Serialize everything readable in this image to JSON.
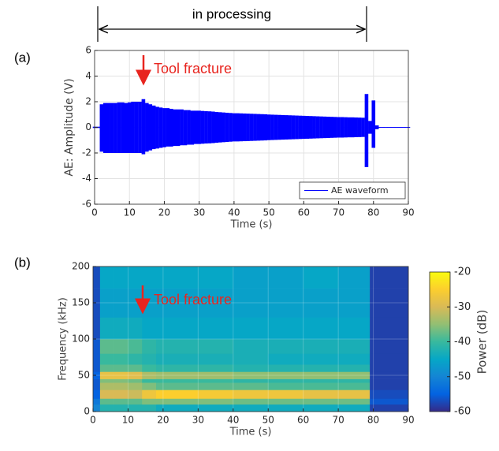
{
  "chart_data": [
    {
      "type": "range",
      "panel": "(a)",
      "span_label": "in processing",
      "annotation": "Tool fracture",
      "x_label": "Time (s)",
      "y_label": "AE: Amplitude (V)",
      "x": [
        0,
        1,
        2,
        3,
        4,
        5,
        6,
        7,
        8,
        9,
        10,
        11,
        12,
        13,
        14,
        15,
        16,
        17,
        18,
        19,
        20,
        21,
        22,
        23,
        24,
        25,
        26,
        27,
        28,
        29,
        30,
        31,
        32,
        33,
        34,
        35,
        36,
        37,
        38,
        39,
        40,
        41,
        42,
        43,
        44,
        45,
        46,
        47,
        48,
        49,
        50,
        51,
        52,
        53,
        54,
        55,
        56,
        57,
        58,
        59,
        60,
        61,
        62,
        63,
        64,
        65,
        66,
        67,
        68,
        69,
        70,
        71,
        72,
        73,
        74,
        75,
        76,
        77,
        78,
        79,
        80,
        81,
        82,
        83,
        84,
        85,
        86,
        87,
        88,
        89,
        90
      ],
      "series": [
        {
          "name": "AE waveform",
          "color": "#0000ff",
          "upper": [
            0.05,
            0.05,
            1.8,
            1.9,
            1.9,
            1.9,
            1.9,
            1.95,
            1.95,
            1.9,
            1.95,
            2.0,
            2.0,
            2.0,
            2.2,
            1.9,
            1.8,
            1.7,
            1.6,
            1.55,
            1.5,
            1.5,
            1.45,
            1.4,
            1.4,
            1.4,
            1.35,
            1.35,
            1.3,
            1.3,
            1.3,
            1.28,
            1.26,
            1.25,
            1.23,
            1.2,
            1.18,
            1.16,
            1.14,
            1.12,
            1.1,
            1.1,
            1.09,
            1.08,
            1.07,
            1.06,
            1.05,
            1.04,
            1.03,
            1.02,
            1.0,
            0.99,
            0.98,
            0.97,
            0.96,
            0.95,
            0.94,
            0.93,
            0.92,
            0.91,
            0.9,
            0.89,
            0.88,
            0.87,
            0.86,
            0.85,
            0.84,
            0.83,
            0.82,
            0.81,
            0.8,
            0.8,
            0.79,
            0.78,
            0.78,
            0.77,
            0.76,
            0.75,
            2.6,
            0.5,
            2.1,
            0.15,
            0.03,
            0.03,
            0.03,
            0.03,
            0.03,
            0.03,
            0.03,
            0.03,
            0.03
          ],
          "lower": [
            -0.05,
            -0.05,
            -1.9,
            -2.0,
            -2.0,
            -2.0,
            -2.0,
            -2.0,
            -2.0,
            -2.0,
            -2.0,
            -2.0,
            -2.0,
            -2.0,
            -2.1,
            -1.9,
            -1.8,
            -1.7,
            -1.65,
            -1.6,
            -1.55,
            -1.5,
            -1.5,
            -1.45,
            -1.45,
            -1.4,
            -1.4,
            -1.35,
            -1.35,
            -1.3,
            -1.3,
            -1.28,
            -1.26,
            -1.25,
            -1.23,
            -1.2,
            -1.18,
            -1.16,
            -1.14,
            -1.12,
            -1.1,
            -1.1,
            -1.09,
            -1.08,
            -1.07,
            -1.06,
            -1.05,
            -1.04,
            -1.03,
            -1.02,
            -1.0,
            -0.99,
            -0.98,
            -0.97,
            -0.96,
            -0.95,
            -0.94,
            -0.93,
            -0.92,
            -0.91,
            -0.9,
            -0.89,
            -0.88,
            -0.87,
            -0.86,
            -0.85,
            -0.84,
            -0.83,
            -0.82,
            -0.81,
            -0.8,
            -0.8,
            -0.79,
            -0.78,
            -0.78,
            -0.77,
            -0.76,
            -0.75,
            -3.1,
            -0.5,
            -1.6,
            -0.15,
            -0.03,
            -0.03,
            -0.03,
            -0.03,
            -0.03,
            -0.03,
            -0.03,
            -0.03,
            -0.03
          ]
        }
      ],
      "xlim": [
        0,
        90
      ],
      "xticks": [
        0,
        10,
        20,
        30,
        40,
        50,
        60,
        70,
        80,
        90
      ],
      "ylim": [
        -6,
        6
      ],
      "yticks": [
        -6,
        -4,
        -2,
        0,
        2,
        4,
        6
      ],
      "grid": true,
      "legend": "lower right"
    },
    {
      "type": "heatmap",
      "panel": "(b)",
      "annotation": "Tool fracture",
      "x_label": "Time (s)",
      "y_label": "Frequency (kHz)",
      "colorbar_label": "Power (dB)",
      "x_edges": [
        0,
        2,
        6,
        10,
        14,
        18,
        30,
        40,
        50,
        60,
        70,
        79,
        90
      ],
      "y_edges": [
        0,
        10,
        18,
        30,
        40,
        45,
        55,
        65,
        80,
        100,
        130,
        170,
        200
      ],
      "z": [
        [
          -50,
          -42,
          -42,
          -42,
          -42,
          -44,
          -44,
          -44,
          -44,
          -44,
          -44,
          -58
        ],
        [
          -52,
          -38,
          -38,
          -38,
          -36,
          -36,
          -36,
          -37,
          -37,
          -37,
          -37,
          -56
        ],
        [
          -55,
          -30,
          -30,
          -31,
          -27,
          -25,
          -26,
          -27,
          -27,
          -28,
          -28,
          -57
        ],
        [
          -56,
          -33,
          -33,
          -34,
          -36,
          -38,
          -38,
          -38,
          -39,
          -39,
          -39,
          -58
        ],
        [
          -56,
          -36,
          -36,
          -37,
          -40,
          -40,
          -40,
          -41,
          -41,
          -41,
          -41,
          -58
        ],
        [
          -55,
          -28,
          -28,
          -29,
          -33,
          -34,
          -34,
          -35,
          -35,
          -35,
          -35,
          -58
        ],
        [
          -56,
          -38,
          -38,
          -38,
          -40,
          -41,
          -41,
          -42,
          -42,
          -42,
          -42,
          -58
        ],
        [
          -56,
          -40,
          -40,
          -41,
          -42,
          -43,
          -43,
          -43,
          -44,
          -44,
          -44,
          -58
        ],
        [
          -56,
          -38,
          -38,
          -39,
          -41,
          -42,
          -42,
          -43,
          -43,
          -43,
          -43,
          -58
        ],
        [
          -57,
          -44,
          -44,
          -44,
          -45,
          -45,
          -45,
          -45,
          -45,
          -45,
          -45,
          -58
        ],
        [
          -57,
          -46,
          -46,
          -46,
          -46,
          -46,
          -46,
          -46,
          -46,
          -46,
          -46,
          -58
        ],
        [
          -57,
          -45,
          -45,
          -45,
          -45,
          -45,
          -45,
          -46,
          -46,
          -45,
          -46,
          -58
        ]
      ],
      "xlim": [
        0,
        90
      ],
      "xticks": [
        0,
        10,
        20,
        30,
        40,
        50,
        60,
        70,
        80,
        90
      ],
      "ylim": [
        0,
        200
      ],
      "yticks": [
        0,
        50,
        100,
        150,
        200
      ],
      "zlim": [
        -60,
        -20
      ],
      "zticks": [
        -60,
        -50,
        -40,
        -30,
        -20
      ],
      "colormap": [
        "#352a87",
        "#0363e1",
        "#1485d4",
        "#06a7c6",
        "#38b99e",
        "#92bf73",
        "#d9ba56",
        "#fcce2e",
        "#f9fb0e"
      ],
      "grid": true
    }
  ]
}
